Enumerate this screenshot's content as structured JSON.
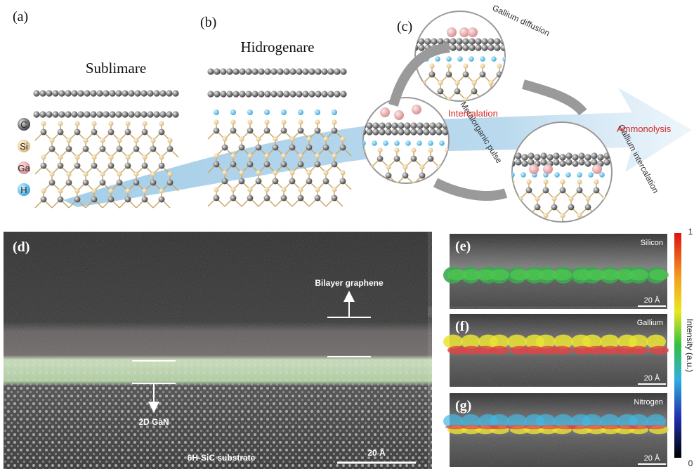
{
  "panels": {
    "a": {
      "label": "(a)",
      "title": "Sublimare",
      "legend": [
        "C",
        "Si",
        "Ga",
        "H"
      ]
    },
    "b": {
      "label": "(b)",
      "title": "Hidrogenare"
    },
    "c": {
      "label": "(c)",
      "steps": [
        "Gallium diffusion",
        "Metalorganic pulse",
        "Gallium intercalation"
      ],
      "arrow_labels": [
        "Intercalation",
        "Ammonolysis"
      ]
    },
    "d": {
      "label": "(d)",
      "annotations": [
        "Bilayer graphene",
        "2D GaN",
        "6H-SiC substrate"
      ],
      "scale_bar": "20 Å"
    },
    "maps": [
      {
        "label": "(e)",
        "element": "Silicon",
        "scale_bar": "20 Å"
      },
      {
        "label": "(f)",
        "element": "Gallium",
        "scale_bar": "20 Å"
      },
      {
        "label": "(g)",
        "element": "Nitrogen",
        "scale_bar": "20 Å"
      }
    ],
    "colorbar": {
      "max": 1,
      "min": 0,
      "title": "Intensity (a.u.)"
    }
  }
}
